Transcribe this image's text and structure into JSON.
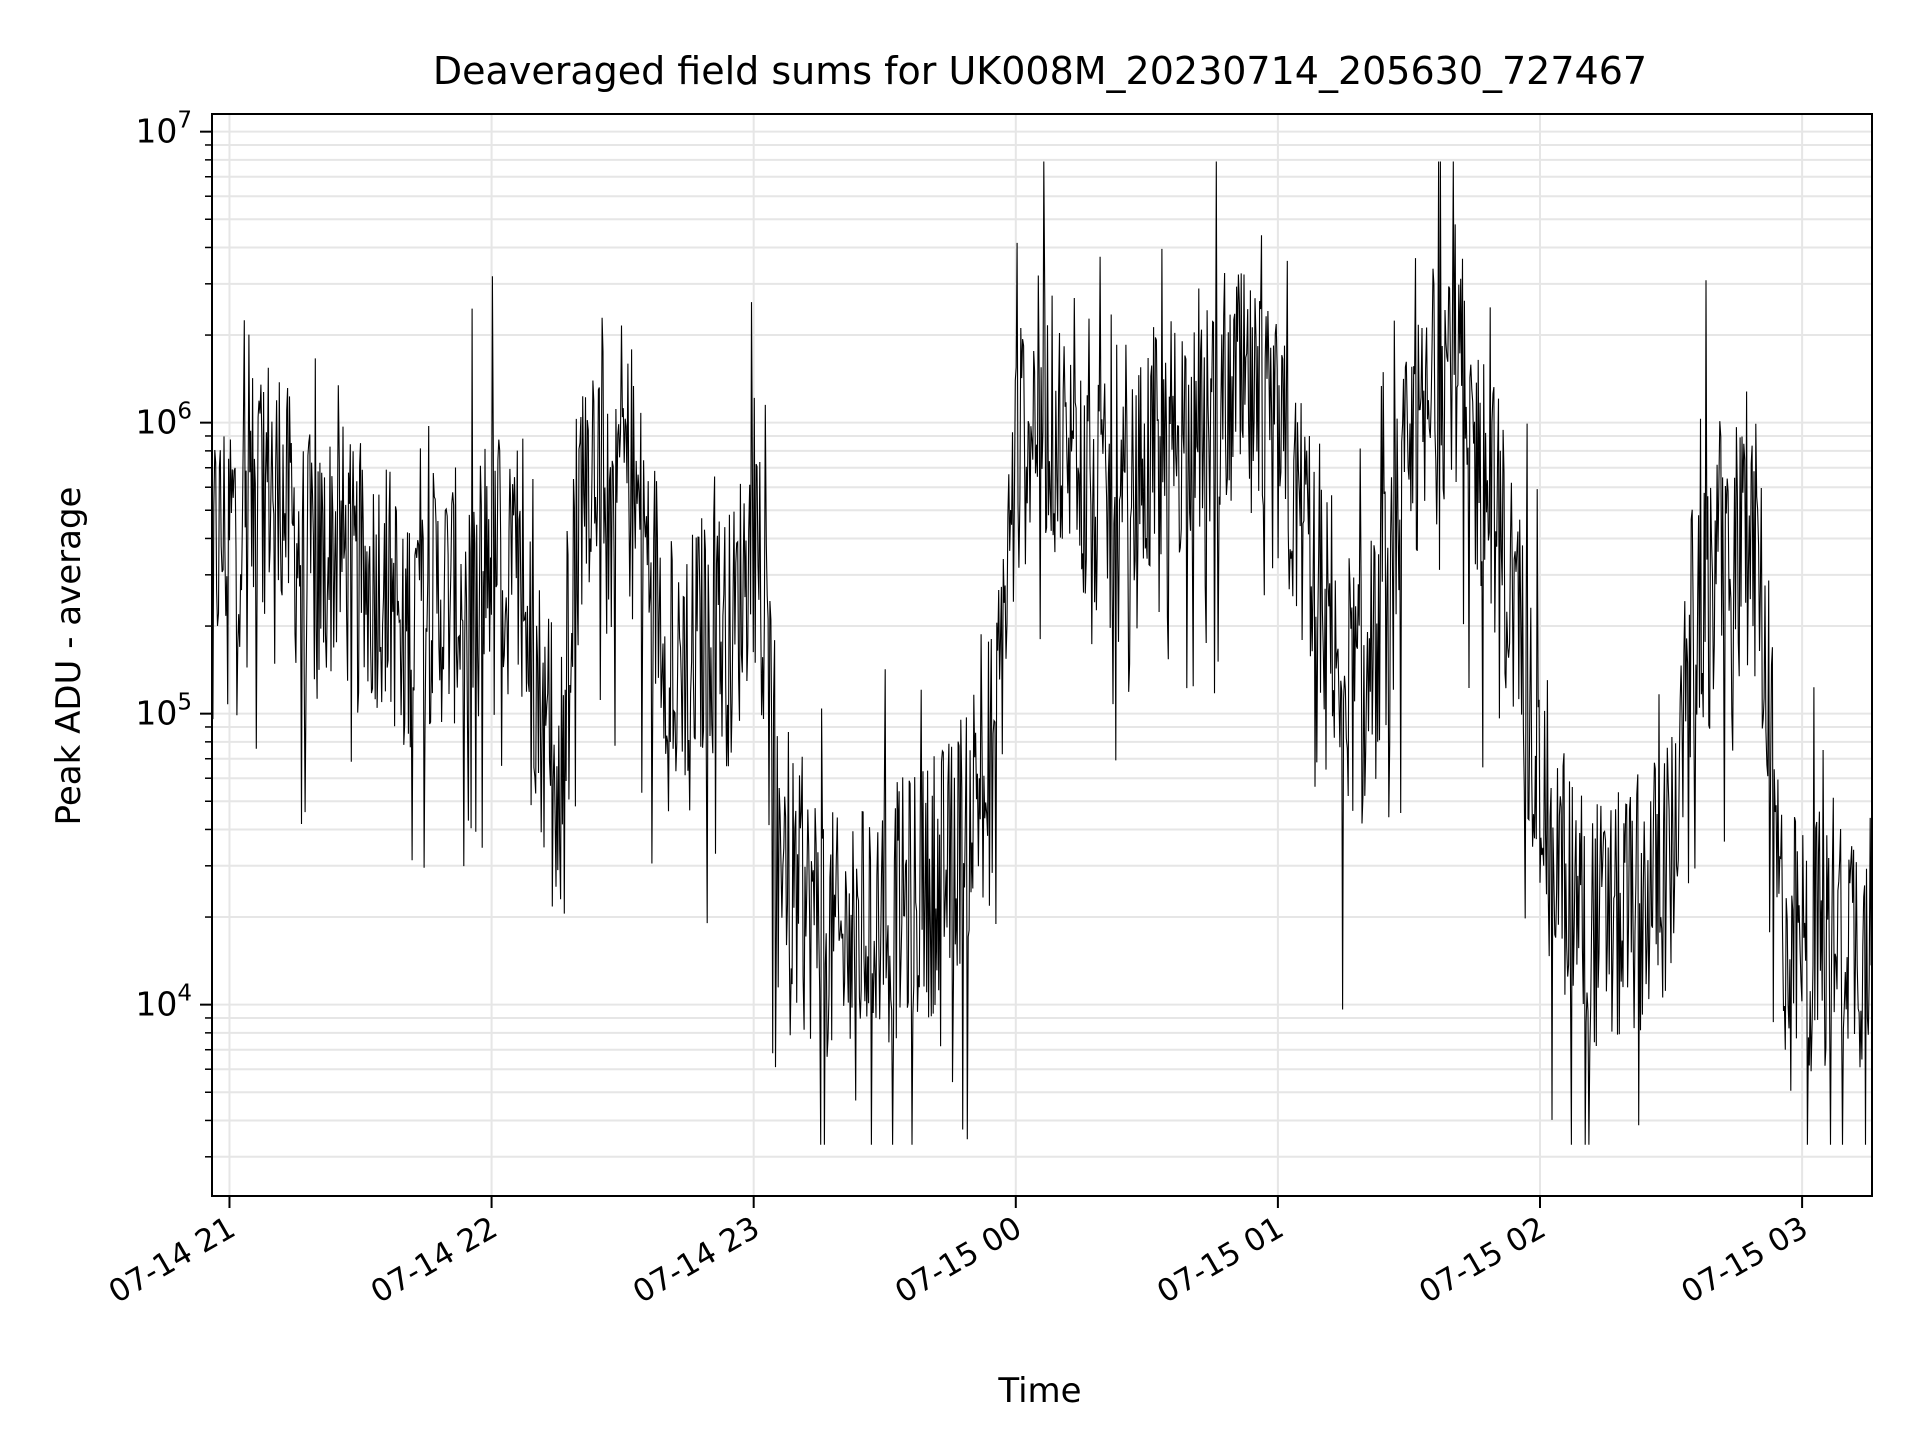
{
  "chart_data": {
    "type": "line",
    "title": "Deaveraged field sums for UK008M_20230714_205630_727467",
    "xlabel": "Time",
    "ylabel": "Peak ADU - average",
    "yscale": "log",
    "grid": true,
    "legend": "none",
    "line_color": "#000000",
    "grid_color": "#e6e6e6",
    "x_range": [
      "2023-07-14 20:56",
      "2023-07-15 03:16"
    ],
    "ylim": [
      2200,
      11500000
    ],
    "y_ticks": [
      {
        "value": 10000,
        "base": "10",
        "exp": "4"
      },
      {
        "value": 100000,
        "base": "10",
        "exp": "5"
      },
      {
        "value": 1000000,
        "base": "10",
        "exp": "6"
      },
      {
        "value": 10000000,
        "base": "10",
        "exp": "7"
      }
    ],
    "x_ticks": [
      {
        "value": "2023-07-14 21:00",
        "label": "07-14 21"
      },
      {
        "value": "2023-07-14 22:00",
        "label": "07-14 22"
      },
      {
        "value": "2023-07-14 23:00",
        "label": "07-14 23"
      },
      {
        "value": "2023-07-15 00:00",
        "label": "07-15 00"
      },
      {
        "value": "2023-07-15 01:00",
        "label": "07-15 01"
      },
      {
        "value": "2023-07-15 02:00",
        "label": "07-15 02"
      },
      {
        "value": "2023-07-15 03:00",
        "label": "07-15 03"
      }
    ],
    "series": [
      {
        "x": [
          "2023-07-14 20:56",
          "2023-07-14 21:00",
          "2023-07-14 21:05",
          "2023-07-14 21:10",
          "2023-07-14 21:15",
          "2023-07-14 21:20",
          "2023-07-14 21:25",
          "2023-07-14 21:30",
          "2023-07-14 21:35",
          "2023-07-14 21:40",
          "2023-07-14 21:45",
          "2023-07-14 21:50",
          "2023-07-14 21:55",
          "2023-07-14 22:00",
          "2023-07-14 22:05",
          "2023-07-14 22:10",
          "2023-07-14 22:15",
          "2023-07-14 22:20",
          "2023-07-14 22:25",
          "2023-07-14 22:30",
          "2023-07-14 22:35",
          "2023-07-14 22:40",
          "2023-07-14 22:45",
          "2023-07-14 22:50",
          "2023-07-14 22:55",
          "2023-07-14 23:00",
          "2023-07-14 23:05",
          "2023-07-14 23:10",
          "2023-07-14 23:15",
          "2023-07-14 23:20",
          "2023-07-14 23:25",
          "2023-07-14 23:30",
          "2023-07-14 23:35",
          "2023-07-14 23:40",
          "2023-07-14 23:45",
          "2023-07-14 23:50",
          "2023-07-14 23:55",
          "2023-07-15 00:00",
          "2023-07-15 00:05",
          "2023-07-15 00:10",
          "2023-07-15 00:15",
          "2023-07-15 00:20",
          "2023-07-15 00:25",
          "2023-07-15 00:30",
          "2023-07-15 00:35",
          "2023-07-15 00:40",
          "2023-07-15 00:45",
          "2023-07-15 00:50",
          "2023-07-15 00:55",
          "2023-07-15 01:00",
          "2023-07-15 01:05",
          "2023-07-15 01:10",
          "2023-07-15 01:15",
          "2023-07-15 01:20",
          "2023-07-15 01:25",
          "2023-07-15 01:30",
          "2023-07-15 01:35",
          "2023-07-15 01:40",
          "2023-07-15 01:45",
          "2023-07-15 01:50",
          "2023-07-15 01:55",
          "2023-07-15 02:00",
          "2023-07-15 02:05",
          "2023-07-15 02:10",
          "2023-07-15 02:15",
          "2023-07-15 02:20",
          "2023-07-15 02:25",
          "2023-07-15 02:30",
          "2023-07-15 02:35",
          "2023-07-15 02:40",
          "2023-07-15 02:45",
          "2023-07-15 02:50",
          "2023-07-15 02:55",
          "2023-07-15 03:00",
          "2023-07-15 03:05",
          "2023-07-15 03:10",
          "2023-07-15 03:15"
        ],
        "values": [
          350000,
          450000,
          500000,
          700000,
          400000,
          300000,
          400000,
          250000,
          300000,
          200000,
          250000,
          250000,
          250000,
          400000,
          300000,
          150000,
          40000,
          600000,
          1000000,
          800000,
          400000,
          200000,
          150000,
          200000,
          180000,
          450000,
          60000,
          22000,
          20000,
          15000,
          18000,
          20000,
          22000,
          25000,
          30000,
          50000,
          80000,
          700000,
          1200000,
          900000,
          600000,
          500000,
          400000,
          700000,
          900000,
          1000000,
          1200000,
          1300000,
          1000000,
          800000,
          500000,
          300000,
          150000,
          100000,
          250000,
          700000,
          1000000,
          2000000,
          800000,
          500000,
          200000,
          60000,
          30000,
          20000,
          18000,
          20000,
          25000,
          30000,
          200000,
          350000,
          400000,
          350000,
          20000,
          15000,
          18000,
          20000,
          15000
        ]
      }
    ]
  }
}
